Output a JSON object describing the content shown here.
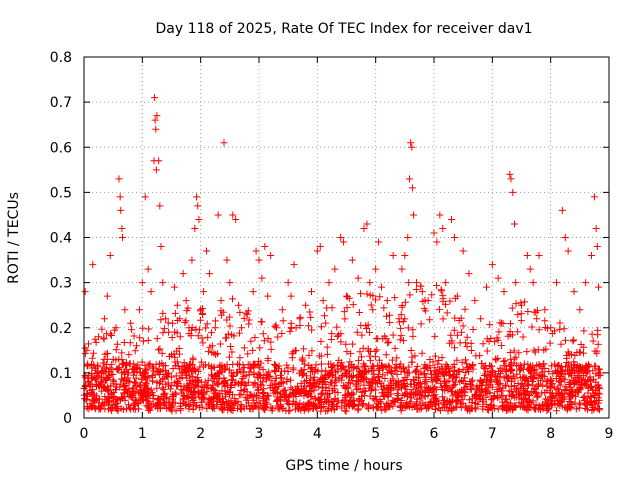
{
  "chart_data": {
    "type": "scatter",
    "title": "Day 118 of 2025, Rate Of TEC Index for receiver dav1",
    "xlabel": "GPS time / hours",
    "ylabel": "ROTI / TECUs",
    "xlim": [
      0,
      9
    ],
    "ylim": [
      0,
      0.8
    ],
    "x_ticks": [
      0,
      1,
      2,
      3,
      4,
      5,
      6,
      7,
      8,
      9
    ],
    "y_ticks": [
      0,
      0.1,
      0.2,
      0.3,
      0.4,
      0.5,
      0.6,
      0.7,
      0.8
    ],
    "x_tick_labels": [
      "0",
      "1",
      "2",
      "3",
      "4",
      "5",
      "6",
      "7",
      "8",
      "9"
    ],
    "y_tick_labels": [
      "0",
      "0.1",
      "0.2",
      "0.3",
      "0.4",
      "0.5",
      "0.6",
      "0.7",
      "0.8"
    ],
    "grid": true,
    "marker": "+",
    "color": "#ff0000",
    "series": [
      {
        "name": "dav1",
        "points": [
          [
            0.02,
            0.28
          ],
          [
            0.05,
            0.15
          ],
          [
            0.1,
            0.07
          ],
          [
            0.15,
            0.34
          ],
          [
            0.2,
            0.11
          ],
          [
            0.25,
            0.18
          ],
          [
            0.3,
            0.09
          ],
          [
            0.35,
            0.22
          ],
          [
            0.4,
            0.27
          ],
          [
            0.45,
            0.36
          ],
          [
            0.5,
            0.13
          ],
          [
            0.55,
            0.2
          ],
          [
            0.6,
            0.53
          ],
          [
            0.62,
            0.49
          ],
          [
            0.63,
            0.46
          ],
          [
            0.65,
            0.42
          ],
          [
            0.66,
            0.4
          ],
          [
            0.7,
            0.24
          ],
          [
            0.75,
            0.1
          ],
          [
            0.8,
            0.21
          ],
          [
            0.85,
            0.12
          ],
          [
            0.9,
            0.16
          ],
          [
            0.95,
            0.24
          ],
          [
            1.0,
            0.3
          ],
          [
            1.05,
            0.49
          ],
          [
            1.1,
            0.33
          ],
          [
            1.15,
            0.28
          ],
          [
            1.2,
            0.57
          ],
          [
            1.21,
            0.71
          ],
          [
            1.22,
            0.66
          ],
          [
            1.23,
            0.64
          ],
          [
            1.24,
            0.55
          ],
          [
            1.25,
            0.67
          ],
          [
            1.28,
            0.57
          ],
          [
            1.3,
            0.47
          ],
          [
            1.32,
            0.38
          ],
          [
            1.35,
            0.3
          ],
          [
            1.4,
            0.22
          ],
          [
            1.45,
            0.19
          ],
          [
            1.5,
            0.14
          ],
          [
            1.55,
            0.29
          ],
          [
            1.6,
            0.25
          ],
          [
            1.65,
            0.18
          ],
          [
            1.7,
            0.32
          ],
          [
            1.75,
            0.26
          ],
          [
            1.8,
            0.2
          ],
          [
            1.85,
            0.35
          ],
          [
            1.9,
            0.42
          ],
          [
            1.93,
            0.49
          ],
          [
            1.95,
            0.47
          ],
          [
            1.97,
            0.44
          ],
          [
            2.0,
            0.24
          ],
          [
            2.05,
            0.28
          ],
          [
            2.1,
            0.37
          ],
          [
            2.15,
            0.32
          ],
          [
            2.2,
            0.16
          ],
          [
            2.25,
            0.2
          ],
          [
            2.3,
            0.45
          ],
          [
            2.35,
            0.26
          ],
          [
            2.4,
            0.61
          ],
          [
            2.45,
            0.35
          ],
          [
            2.5,
            0.3
          ],
          [
            2.55,
            0.45
          ],
          [
            2.6,
            0.44
          ],
          [
            2.65,
            0.25
          ],
          [
            2.7,
            0.2
          ],
          [
            2.8,
            0.23
          ],
          [
            2.9,
            0.28
          ],
          [
            2.95,
            0.37
          ],
          [
            3.0,
            0.35
          ],
          [
            3.05,
            0.31
          ],
          [
            3.1,
            0.38
          ],
          [
            3.15,
            0.27
          ],
          [
            3.2,
            0.36
          ],
          [
            3.3,
            0.2
          ],
          [
            3.4,
            0.24
          ],
          [
            3.5,
            0.3
          ],
          [
            3.55,
            0.27
          ],
          [
            3.6,
            0.34
          ],
          [
            3.7,
            0.22
          ],
          [
            3.8,
            0.25
          ],
          [
            3.9,
            0.28
          ],
          [
            4.0,
            0.37
          ],
          [
            4.05,
            0.38
          ],
          [
            4.1,
            0.26
          ],
          [
            4.2,
            0.3
          ],
          [
            4.3,
            0.33
          ],
          [
            4.4,
            0.4
          ],
          [
            4.45,
            0.39
          ],
          [
            4.5,
            0.27
          ],
          [
            4.6,
            0.35
          ],
          [
            4.7,
            0.31
          ],
          [
            4.8,
            0.42
          ],
          [
            4.85,
            0.43
          ],
          [
            4.9,
            0.3
          ],
          [
            4.95,
            0.24
          ],
          [
            5.0,
            0.33
          ],
          [
            5.05,
            0.39
          ],
          [
            5.1,
            0.29
          ],
          [
            5.2,
            0.26
          ],
          [
            5.3,
            0.36
          ],
          [
            5.4,
            0.22
          ],
          [
            5.45,
            0.33
          ],
          [
            5.5,
            0.36
          ],
          [
            5.55,
            0.4
          ],
          [
            5.58,
            0.53
          ],
          [
            5.6,
            0.61
          ],
          [
            5.62,
            0.6
          ],
          [
            5.63,
            0.51
          ],
          [
            5.65,
            0.45
          ],
          [
            5.7,
            0.3
          ],
          [
            5.8,
            0.28
          ],
          [
            5.9,
            0.26
          ],
          [
            6.0,
            0.41
          ],
          [
            6.05,
            0.39
          ],
          [
            6.1,
            0.45
          ],
          [
            6.15,
            0.42
          ],
          [
            6.2,
            0.3
          ],
          [
            6.3,
            0.44
          ],
          [
            6.35,
            0.4
          ],
          [
            6.4,
            0.27
          ],
          [
            6.5,
            0.37
          ],
          [
            6.6,
            0.32
          ],
          [
            6.7,
            0.26
          ],
          [
            6.8,
            0.22
          ],
          [
            6.9,
            0.29
          ],
          [
            7.0,
            0.34
          ],
          [
            7.1,
            0.31
          ],
          [
            7.2,
            0.28
          ],
          [
            7.3,
            0.54
          ],
          [
            7.32,
            0.53
          ],
          [
            7.35,
            0.5
          ],
          [
            7.38,
            0.43
          ],
          [
            7.4,
            0.3
          ],
          [
            7.5,
            0.25
          ],
          [
            7.6,
            0.36
          ],
          [
            7.65,
            0.33
          ],
          [
            7.7,
            0.3
          ],
          [
            7.8,
            0.36
          ],
          [
            7.9,
            0.24
          ],
          [
            8.0,
            0.2
          ],
          [
            8.1,
            0.3
          ],
          [
            8.2,
            0.46
          ],
          [
            8.25,
            0.4
          ],
          [
            8.3,
            0.37
          ],
          [
            8.4,
            0.28
          ],
          [
            8.5,
            0.24
          ],
          [
            8.6,
            0.3
          ],
          [
            8.7,
            0.36
          ],
          [
            8.75,
            0.49
          ],
          [
            8.78,
            0.42
          ],
          [
            8.8,
            0.38
          ],
          [
            8.82,
            0.29
          ],
          [
            8.85,
            0.1
          ]
        ]
      }
    ],
    "dense_band": {
      "x_range": [
        0.0,
        8.85
      ],
      "base_range": [
        0.0,
        0.12
      ],
      "upper_envelope": [
        [
          0.0,
          0.16
        ],
        [
          0.3,
          0.2
        ],
        [
          0.7,
          0.2
        ],
        [
          1.0,
          0.2
        ],
        [
          1.4,
          0.26
        ],
        [
          2.0,
          0.27
        ],
        [
          2.5,
          0.27
        ],
        [
          3.0,
          0.22
        ],
        [
          3.5,
          0.22
        ],
        [
          4.0,
          0.25
        ],
        [
          4.5,
          0.28
        ],
        [
          5.0,
          0.28
        ],
        [
          5.5,
          0.3
        ],
        [
          6.0,
          0.3
        ],
        [
          6.5,
          0.26
        ],
        [
          7.0,
          0.22
        ],
        [
          7.5,
          0.27
        ],
        [
          8.0,
          0.22
        ],
        [
          8.5,
          0.2
        ],
        [
          8.85,
          0.2
        ]
      ],
      "sample_count": 2600
    }
  }
}
